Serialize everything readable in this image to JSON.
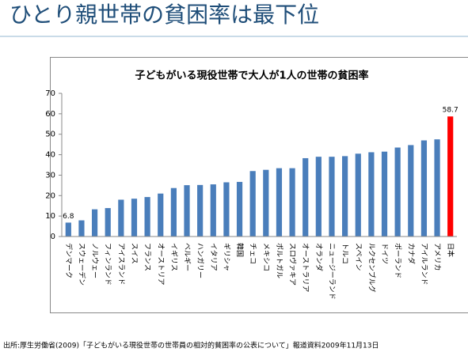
{
  "slide_title": "ひとり親世帯の貧困率は最下位",
  "source": "出所:厚生労働省(2009)「子どもがいる現役世帯の世帯員の相対的貧困率の公表について」報道資料2009年11月13日",
  "chart_data": {
    "type": "bar",
    "title": "子どもがいる現役世帯で大人が1人の世帯の貧困率",
    "categories": [
      "デンマーク",
      "スウェーデン",
      "ノルウェー",
      "フィンランド",
      "アイスランド",
      "スイス",
      "フランス",
      "オーストリア",
      "イギリス",
      "ベルギー",
      "ハンガリー",
      "イタリア",
      "ギリシャ",
      "韓国",
      "チェコ",
      "メキシコ",
      "ポルトガル",
      "スロヴァキア",
      "オーストラリア",
      "オランダ",
      "ニュージーランド",
      "トルコ",
      "スペイン",
      "ルクセンブルグ",
      "ドイツ",
      "ポーランド",
      "カナダ",
      "アイルランド",
      "アメリカ",
      "日本"
    ],
    "values": [
      6.8,
      7.9,
      13.3,
      13.9,
      18.0,
      18.5,
      19.3,
      21.0,
      23.7,
      25.1,
      25.2,
      25.5,
      26.5,
      26.7,
      32.0,
      32.6,
      33.4,
      33.4,
      38.3,
      39.0,
      39.0,
      39.3,
      40.5,
      41.2,
      41.5,
      43.5,
      44.7,
      47.0,
      47.5,
      58.7
    ],
    "value_labels": [
      "6.8",
      null,
      null,
      null,
      null,
      null,
      null,
      null,
      null,
      null,
      null,
      null,
      null,
      null,
      null,
      null,
      null,
      null,
      null,
      null,
      null,
      null,
      null,
      null,
      null,
      null,
      null,
      null,
      null,
      "58.7"
    ],
    "colors": [
      "#4a7ebb",
      "#4a7ebb",
      "#4a7ebb",
      "#4a7ebb",
      "#4a7ebb",
      "#4a7ebb",
      "#4a7ebb",
      "#4a7ebb",
      "#4a7ebb",
      "#4a7ebb",
      "#4a7ebb",
      "#4a7ebb",
      "#4a7ebb",
      "#4a7ebb",
      "#4a7ebb",
      "#4a7ebb",
      "#4a7ebb",
      "#4a7ebb",
      "#4a7ebb",
      "#4a7ebb",
      "#4a7ebb",
      "#4a7ebb",
      "#4a7ebb",
      "#4a7ebb",
      "#4a7ebb",
      "#4a7ebb",
      "#4a7ebb",
      "#4a7ebb",
      "#4a7ebb",
      "#ff0000"
    ],
    "ylim": [
      0,
      70
    ],
    "yticks": [
      0,
      10,
      20,
      30,
      40,
      50,
      60,
      70
    ],
    "grid": false
  }
}
